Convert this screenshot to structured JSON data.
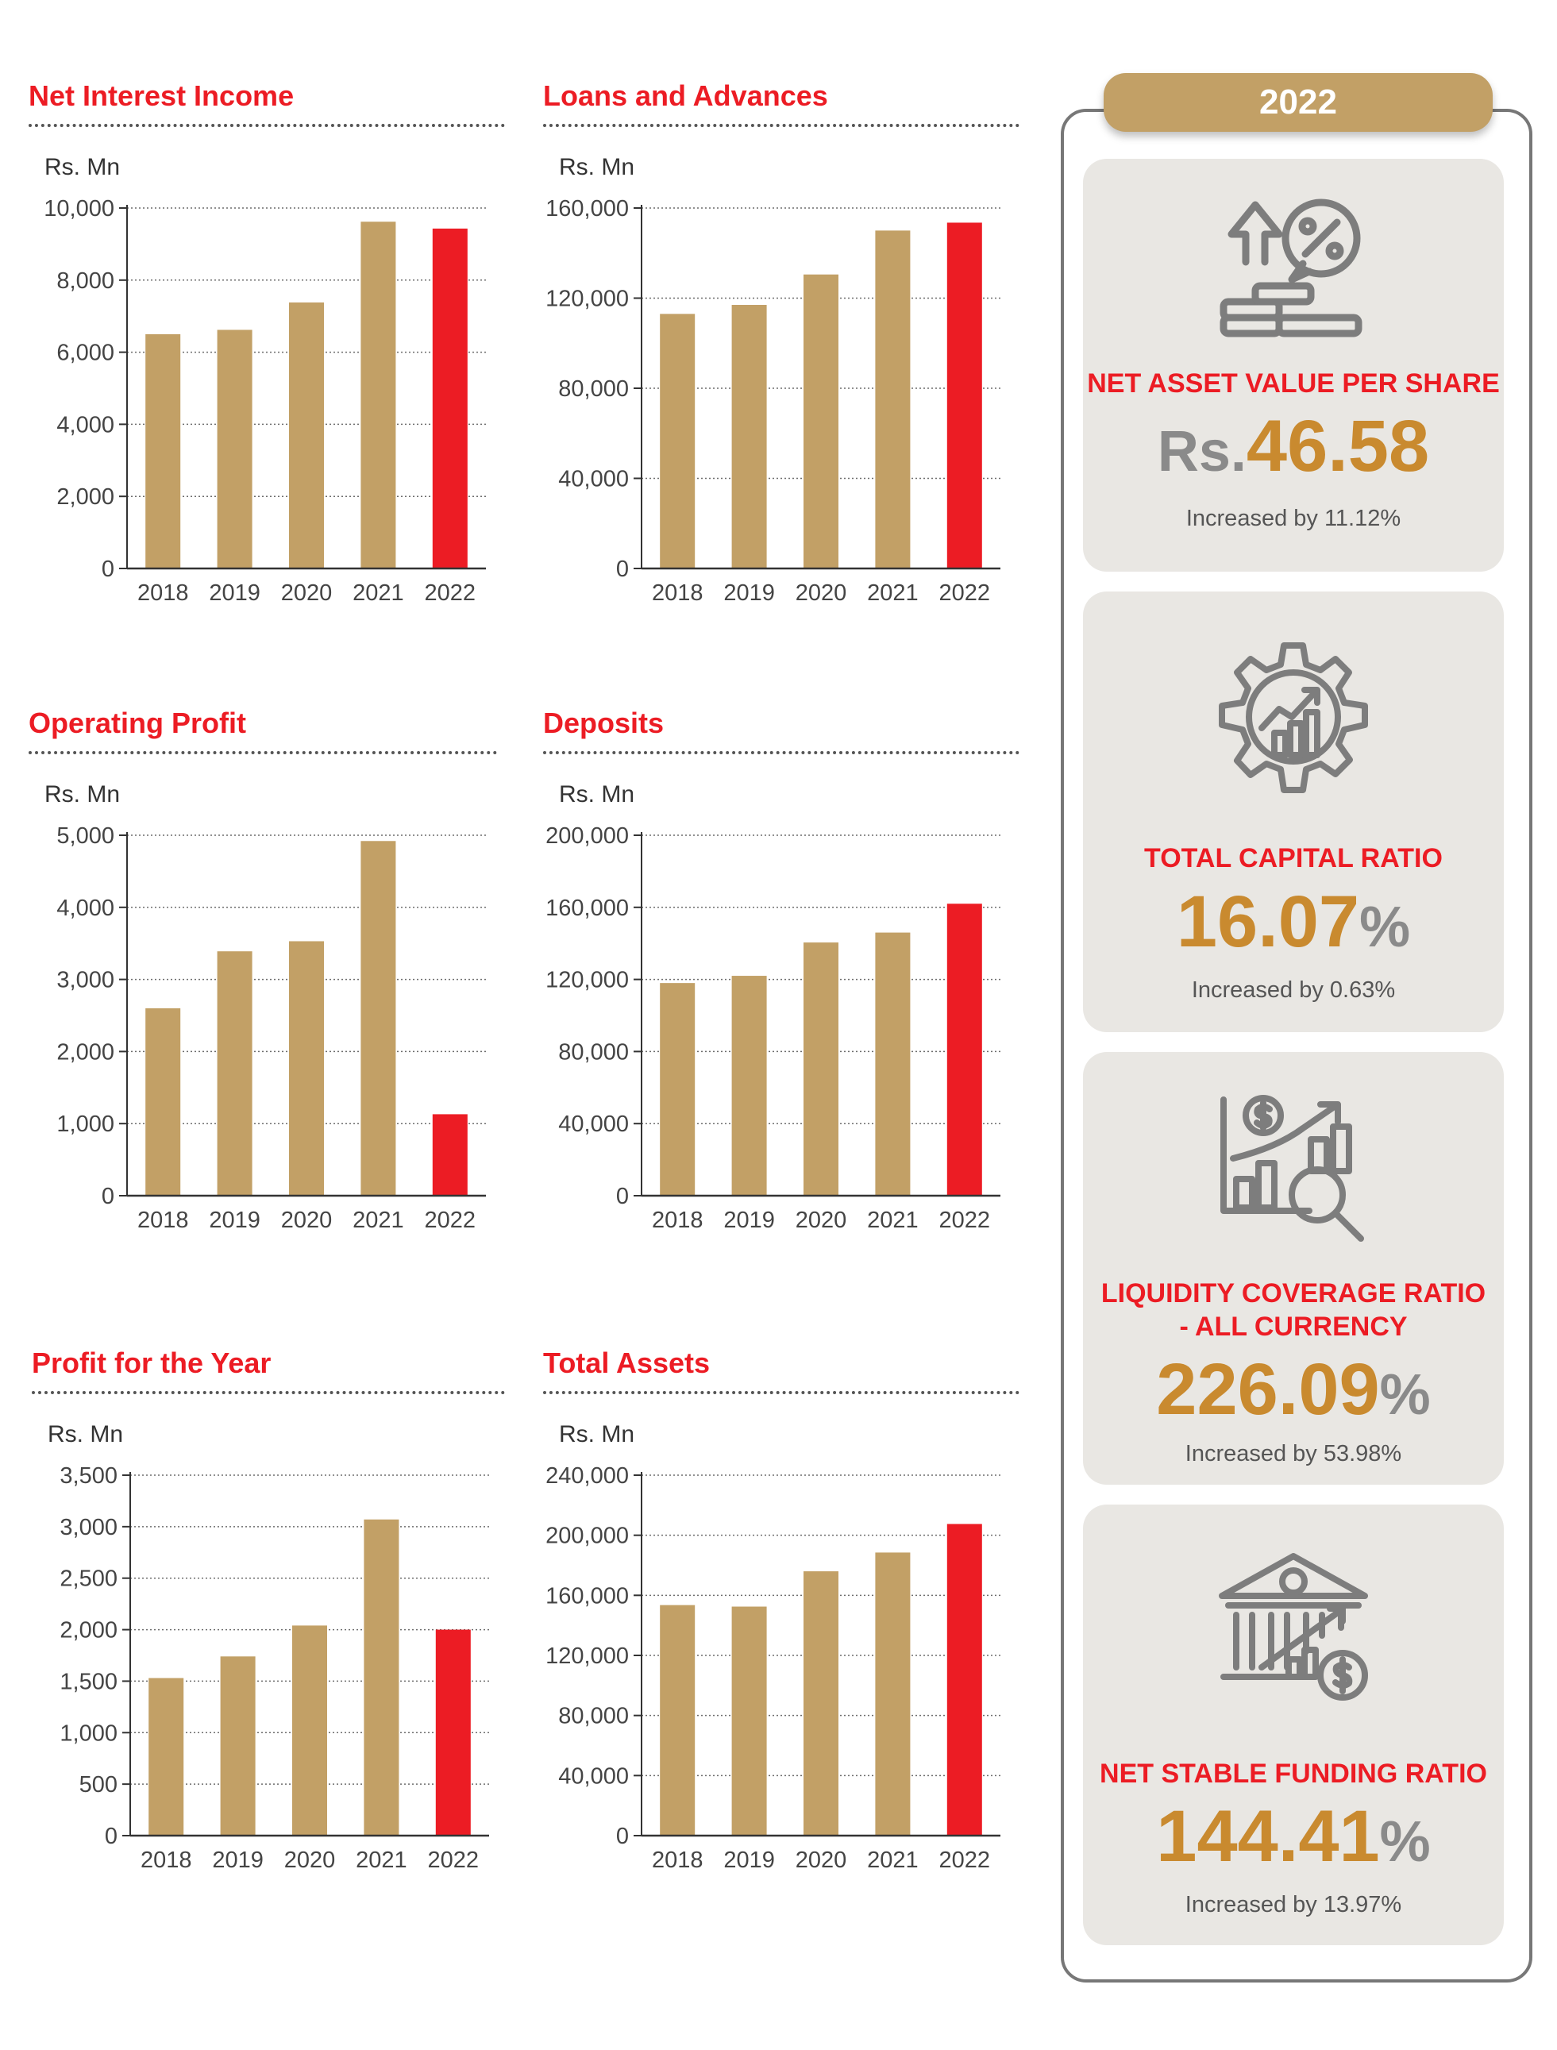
{
  "colors": {
    "bar": "#c2a066",
    "highlight": "#ec1c24",
    "title": "#ec1c24",
    "accent": "#c98a2f"
  },
  "chart_data": [
    {
      "type": "bar",
      "title": "Net Interest Income",
      "ylabel": "Rs. Mn",
      "categories": [
        "2018",
        "2019",
        "2020",
        "2021",
        "2022"
      ],
      "values": [
        6500,
        6620,
        7380,
        9620,
        9430
      ],
      "ylim": [
        0,
        10000
      ],
      "ticks": [
        "0",
        "2,000",
        "4,000",
        "6,000",
        "8,000",
        "10,000"
      ],
      "tick_values": [
        0,
        2000,
        4000,
        6000,
        8000,
        10000
      ],
      "highlight": "2022"
    },
    {
      "type": "bar",
      "title": "Loans and Advances",
      "ylabel": "Rs. Mn",
      "categories": [
        "2018",
        "2019",
        "2020",
        "2021",
        "2022"
      ],
      "values": [
        113000,
        117000,
        130500,
        150000,
        153500
      ],
      "ylim": [
        0,
        160000
      ],
      "ticks": [
        "0",
        "40,000",
        "80,000",
        "120,000",
        "160,000"
      ],
      "tick_values": [
        0,
        40000,
        80000,
        120000,
        160000
      ],
      "highlight": "2022"
    },
    {
      "type": "bar",
      "title": "Operating Profit",
      "ylabel": "Rs. Mn",
      "categories": [
        "2018",
        "2019",
        "2020",
        "2021",
        "2022"
      ],
      "values": [
        2600,
        3390,
        3530,
        4920,
        1130
      ],
      "ylim": [
        0,
        5000
      ],
      "ticks": [
        "0",
        "1,000",
        "2,000",
        "3,000",
        "4,000",
        "5,000"
      ],
      "tick_values": [
        0,
        1000,
        2000,
        3000,
        4000,
        5000
      ],
      "highlight": "2022"
    },
    {
      "type": "bar",
      "title": "Deposits",
      "ylabel": "Rs. Mn",
      "categories": [
        "2018",
        "2019",
        "2020",
        "2021",
        "2022"
      ],
      "values": [
        118000,
        122000,
        140500,
        146000,
        162000
      ],
      "ylim": [
        0,
        200000
      ],
      "ticks": [
        "0",
        "40,000",
        "80,000",
        "120,000",
        "160,000",
        "200,000"
      ],
      "tick_values": [
        0,
        40000,
        80000,
        120000,
        160000,
        200000
      ],
      "highlight": "2022"
    },
    {
      "type": "bar",
      "title": "Profit for the Year",
      "ylabel": "Rs. Mn",
      "categories": [
        "2018",
        "2019",
        "2020",
        "2021",
        "2022"
      ],
      "values": [
        1530,
        1740,
        2040,
        3070,
        2000
      ],
      "ylim": [
        0,
        3500
      ],
      "ticks": [
        "0",
        "500",
        "1,000",
        "1,500",
        "2,000",
        "2,500",
        "3,000",
        "3,500"
      ],
      "tick_values": [
        0,
        500,
        1000,
        1500,
        2000,
        2500,
        3000,
        3500
      ],
      "highlight": "2022"
    },
    {
      "type": "bar",
      "title": "Total Assets",
      "ylabel": "Rs. Mn",
      "categories": [
        "2018",
        "2019",
        "2020",
        "2021",
        "2022"
      ],
      "values": [
        153500,
        152500,
        176000,
        188500,
        207500
      ],
      "ylim": [
        0,
        240000
      ],
      "ticks": [
        "0",
        "40,000",
        "80,000",
        "120,000",
        "160,000",
        "200,000",
        "240,000"
      ],
      "tick_values": [
        0,
        40000,
        80000,
        120000,
        160000,
        200000,
        240000
      ],
      "highlight": "2022"
    }
  ],
  "panel": {
    "year": "2022",
    "cards": [
      {
        "icon": "percentage-growth-coins-icon",
        "label": "NET ASSET VALUE PER SHARE",
        "prefix": "Rs.",
        "value": "46.58",
        "suffix": "",
        "change": "Increased by 11.12%"
      },
      {
        "icon": "gear-growth-chart-icon",
        "label": "TOTAL CAPITAL RATIO",
        "prefix": "",
        "value": "16.07",
        "suffix": "%",
        "change": "Increased by 0.63%"
      },
      {
        "icon": "chart-magnifier-dollar-icon",
        "label": "LIQUIDITY COVERAGE RATIO\n- ALL CURRENCY",
        "prefix": "",
        "value": "226.09",
        "suffix": "%",
        "change": "Increased by 53.98%"
      },
      {
        "icon": "bank-dollar-growth-icon",
        "label": "NET STABLE FUNDING RATIO",
        "prefix": "",
        "value": "144.41",
        "suffix": "%",
        "change": "Increased by 13.97%"
      }
    ]
  }
}
